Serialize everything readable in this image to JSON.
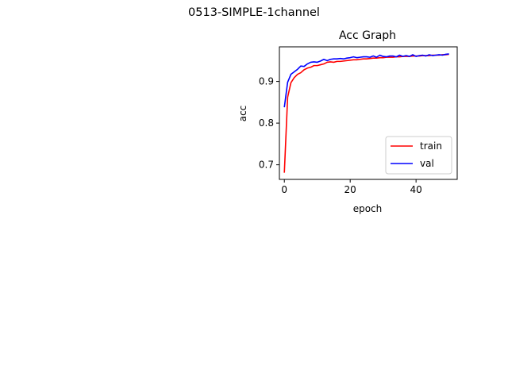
{
  "figure": {
    "suptitle": "0513-SIMPLE-1channel"
  },
  "chart_data": {
    "type": "line",
    "title": "Acc Graph",
    "xlabel": "epoch",
    "ylabel": "acc",
    "xlim": [
      -1.5,
      52.5
    ],
    "ylim": [
      0.665,
      0.983
    ],
    "xticks": [
      0,
      20,
      40
    ],
    "yticks": [
      0.7,
      0.8,
      0.9
    ],
    "xtick_labels": [
      "0",
      "20",
      "40"
    ],
    "ytick_labels": [
      "0.7",
      "0.8",
      "0.9"
    ],
    "grid": false,
    "legend_position": "lower-right",
    "x": [
      0,
      1,
      2,
      3,
      4,
      5,
      6,
      7,
      8,
      9,
      10,
      11,
      12,
      13,
      14,
      15,
      16,
      17,
      18,
      19,
      20,
      21,
      22,
      23,
      24,
      25,
      26,
      27,
      28,
      29,
      30,
      31,
      32,
      33,
      34,
      35,
      36,
      37,
      38,
      39,
      40,
      41,
      42,
      43,
      44,
      45,
      46,
      47,
      48,
      49,
      50
    ],
    "series": [
      {
        "name": "train",
        "color": "#ff0000",
        "values": [
          0.681,
          0.862,
          0.897,
          0.909,
          0.917,
          0.921,
          0.928,
          0.932,
          0.934,
          0.938,
          0.938,
          0.94,
          0.942,
          0.946,
          0.947,
          0.946,
          0.948,
          0.948,
          0.949,
          0.95,
          0.951,
          0.952,
          0.952,
          0.953,
          0.954,
          0.954,
          0.955,
          0.956,
          0.956,
          0.957,
          0.957,
          0.958,
          0.958,
          0.958,
          0.959,
          0.959,
          0.96,
          0.96,
          0.96,
          0.961,
          0.961,
          0.961,
          0.962,
          0.962,
          0.962,
          0.963,
          0.963,
          0.963,
          0.964,
          0.964,
          0.965
        ]
      },
      {
        "name": "val",
        "color": "#0000ff",
        "values": [
          0.838,
          0.898,
          0.917,
          0.923,
          0.929,
          0.937,
          0.936,
          0.942,
          0.946,
          0.947,
          0.946,
          0.949,
          0.953,
          0.95,
          0.953,
          0.954,
          0.954,
          0.955,
          0.954,
          0.956,
          0.957,
          0.959,
          0.957,
          0.958,
          0.959,
          0.959,
          0.958,
          0.961,
          0.958,
          0.963,
          0.96,
          0.959,
          0.961,
          0.961,
          0.959,
          0.963,
          0.96,
          0.962,
          0.96,
          0.964,
          0.96,
          0.962,
          0.963,
          0.961,
          0.964,
          0.962,
          0.963,
          0.964,
          0.963,
          0.965,
          0.966
        ]
      }
    ]
  }
}
